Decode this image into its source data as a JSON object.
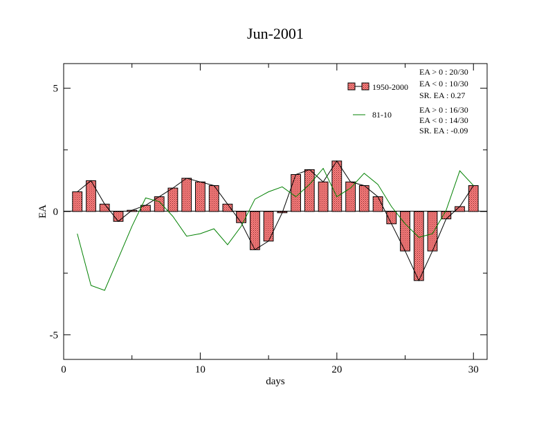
{
  "chart_data": {
    "type": "bar",
    "title": "Jun-2001",
    "xlabel": "days",
    "ylabel": "EA",
    "xlim": [
      0,
      31
    ],
    "ylim": [
      -6,
      6
    ],
    "x_ticks": [
      0,
      10,
      20,
      30
    ],
    "x_tick_labels": [
      "0",
      "10",
      "20",
      "30"
    ],
    "y_ticks": [
      -5,
      0,
      5
    ],
    "y_tick_labels": [
      "-5",
      "0",
      "5"
    ],
    "grid": false,
    "legend_position": "top-right",
    "x": [
      1,
      2,
      3,
      4,
      5,
      6,
      7,
      8,
      9,
      10,
      11,
      12,
      13,
      14,
      15,
      16,
      17,
      18,
      19,
      20,
      21,
      22,
      23,
      24,
      25,
      26,
      27,
      28,
      29,
      30
    ],
    "series": [
      {
        "name": "1950-2000",
        "kind": "bar",
        "color": "#ff8080",
        "values": [
          0.8,
          1.25,
          0.3,
          -0.4,
          0.05,
          0.25,
          0.6,
          0.95,
          1.35,
          1.2,
          1.05,
          0.3,
          -0.45,
          -1.55,
          -1.2,
          -0.05,
          1.5,
          1.7,
          1.2,
          2.05,
          1.2,
          1.05,
          0.6,
          -0.5,
          -1.6,
          -2.8,
          -1.6,
          -0.3,
          0.2,
          1.05
        ]
      },
      {
        "name": "81-10",
        "kind": "line",
        "color": "#008000",
        "values": [
          -0.9,
          -3.0,
          -3.2,
          -1.9,
          -0.6,
          0.55,
          0.4,
          -0.2,
          -1.0,
          -0.9,
          -0.7,
          -1.35,
          -0.6,
          0.5,
          0.8,
          1.0,
          0.6,
          1.1,
          1.75,
          0.6,
          0.95,
          1.55,
          1.1,
          0.2,
          -0.5,
          -1.05,
          -0.9,
          0.05,
          1.65,
          1.05
        ]
      }
    ],
    "annotations": [
      {
        "series": "1950-2000",
        "lines": [
          "EA > 0 : 20/30",
          "EA < 0 : 10/30",
          "SR. EA :  0.27"
        ]
      },
      {
        "series": "81-10",
        "lines": [
          "EA > 0 : 16/30",
          "EA < 0 : 14/30",
          "SR. EA : -0.09"
        ]
      }
    ]
  }
}
